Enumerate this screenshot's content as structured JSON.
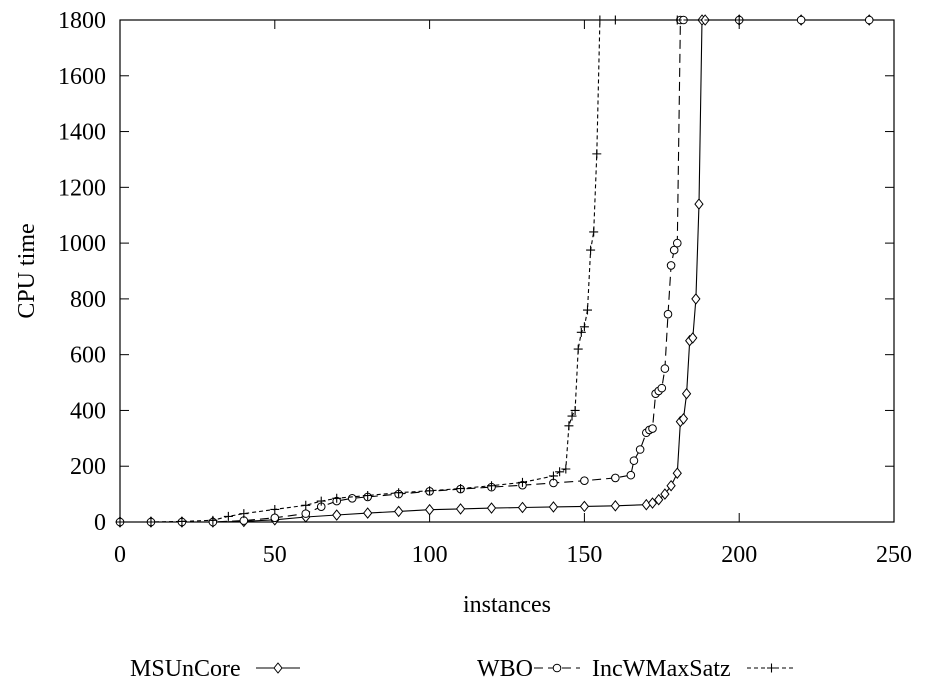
{
  "chart_data": {
    "type": "line",
    "title": "",
    "xlabel": "instances",
    "ylabel": "CPU time",
    "xlim": [
      0,
      250
    ],
    "ylim": [
      0,
      1800
    ],
    "xticks": [
      0,
      50,
      100,
      150,
      200,
      250
    ],
    "yticks": [
      0,
      200,
      400,
      600,
      800,
      1000,
      1200,
      1400,
      1600,
      1800
    ],
    "grid": false,
    "legend_position": "bottom",
    "series": [
      {
        "name": "MSUnCore",
        "line_style": "solid",
        "marker": "diamond",
        "color": "#000000",
        "x": [
          0,
          10,
          20,
          30,
          40,
          50,
          60,
          70,
          80,
          90,
          100,
          110,
          120,
          130,
          140,
          150,
          160,
          170,
          172,
          174,
          176,
          178,
          180,
          181,
          182,
          183,
          184,
          185,
          186,
          187,
          188,
          189,
          200,
          220,
          242
        ],
        "y": [
          0,
          0,
          0,
          0,
          2,
          8,
          18,
          25,
          32,
          38,
          44,
          47,
          50,
          52,
          54,
          56,
          58,
          62,
          68,
          80,
          100,
          130,
          175,
          360,
          370,
          460,
          650,
          660,
          800,
          1140,
          1800,
          1800,
          1800,
          1800,
          1800
        ]
      },
      {
        "name": "WBO",
        "line_style": "dashed",
        "marker": "circle",
        "color": "#000000",
        "x": [
          0,
          10,
          20,
          30,
          40,
          50,
          60,
          65,
          70,
          75,
          80,
          90,
          100,
          110,
          120,
          130,
          140,
          150,
          160,
          165,
          166,
          168,
          170,
          171,
          172,
          173,
          174,
          175,
          176,
          177,
          178,
          179,
          180,
          181,
          182,
          200,
          220,
          242
        ],
        "y": [
          0,
          0,
          0,
          0,
          5,
          15,
          30,
          55,
          75,
          85,
          90,
          100,
          110,
          118,
          125,
          132,
          140,
          148,
          158,
          168,
          220,
          260,
          320,
          330,
          335,
          460,
          470,
          480,
          550,
          745,
          920,
          975,
          1000,
          1800,
          1800,
          1800,
          1800,
          1800
        ]
      },
      {
        "name": "IncWMaxSatz",
        "line_style": "dotted",
        "marker": "plus",
        "color": "#000000",
        "x": [
          0,
          10,
          20,
          30,
          35,
          40,
          50,
          60,
          65,
          70,
          80,
          90,
          100,
          110,
          120,
          130,
          140,
          142,
          144,
          145,
          146,
          147,
          148,
          149,
          150,
          151,
          152,
          153,
          154,
          155,
          160,
          180,
          200
        ],
        "y": [
          0,
          0,
          2,
          6,
          20,
          30,
          45,
          60,
          75,
          85,
          95,
          105,
          112,
          120,
          130,
          142,
          165,
          180,
          190,
          345,
          380,
          400,
          620,
          680,
          700,
          760,
          975,
          1040,
          1320,
          1800,
          1800,
          1800,
          1800
        ]
      }
    ]
  }
}
